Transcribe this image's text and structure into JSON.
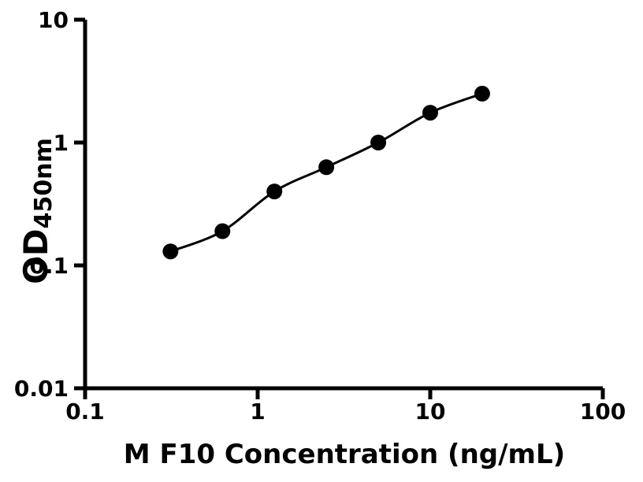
{
  "chart_data": {
    "type": "scatter",
    "title": "",
    "xlabel": "M F10 Concentration (ng/mL)",
    "ylabel_main": "OD",
    "ylabel_sub": "450nm",
    "x_scale": "log",
    "y_scale": "log",
    "xlim": [
      0.1,
      100
    ],
    "ylim": [
      0.01,
      10
    ],
    "x_ticks": [
      0.1,
      1,
      10,
      100
    ],
    "x_tick_labels": [
      "0.1",
      "1",
      "10",
      "100"
    ],
    "y_ticks": [
      0.01,
      0.1,
      1,
      10
    ],
    "y_tick_labels": [
      "0.01",
      "0.1",
      "1",
      "10"
    ],
    "series": [
      {
        "x": [
          0.3125,
          0.625,
          1.25,
          2.5,
          5,
          10,
          20
        ],
        "y": [
          0.13,
          0.19,
          0.4,
          0.63,
          1.0,
          1.75,
          2.5
        ]
      }
    ],
    "grid": false,
    "legend": "none",
    "marker_color": "#000000",
    "line_color": "#000000",
    "axis_color": "#000000",
    "background": "#ffffff"
  }
}
